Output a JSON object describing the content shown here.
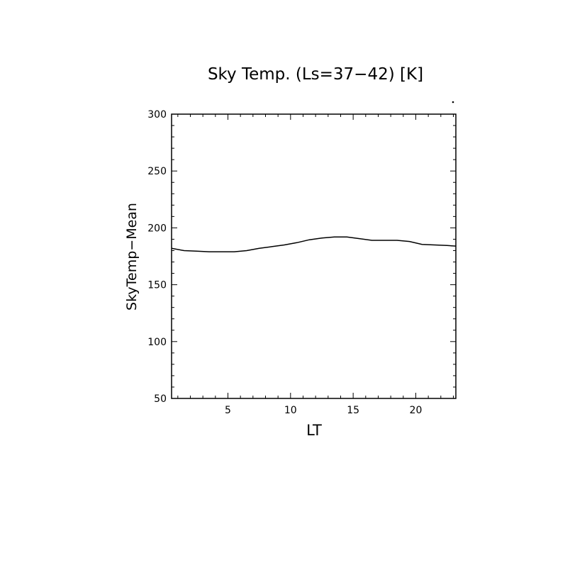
{
  "chart_data": {
    "type": "line",
    "title": "Sky Temp. (Ls=37−42) [K]",
    "xlabel": "LT",
    "ylabel": "SkyTemp−Mean",
    "xlim": [
      0.5,
      23.2
    ],
    "ylim": [
      50,
      300
    ],
    "x_ticks": [
      5,
      10,
      15,
      20
    ],
    "x_tick_labels": [
      "5",
      "10",
      "15",
      "20"
    ],
    "y_ticks": [
      50,
      100,
      150,
      200,
      250,
      300
    ],
    "y_tick_labels": [
      "50",
      "100",
      "150",
      "200",
      "250",
      "300"
    ],
    "grid": false,
    "series": [
      {
        "x": [
          0.5,
          1.5,
          2.5,
          3.5,
          4.5,
          5.5,
          6.5,
          7.5,
          8.5,
          9.5,
          10.5,
          11.5,
          12.5,
          13.5,
          14.5,
          15.5,
          16.5,
          17.5,
          18.5,
          19.5,
          20.5,
          21.5,
          22.5,
          23.2
        ],
        "values": [
          182,
          180,
          179.5,
          179,
          179,
          179,
          180,
          182,
          183.5,
          185,
          187,
          189.5,
          191,
          192,
          192,
          190.5,
          189,
          189,
          189,
          188,
          185.5,
          185,
          184.5,
          184
        ]
      }
    ]
  }
}
